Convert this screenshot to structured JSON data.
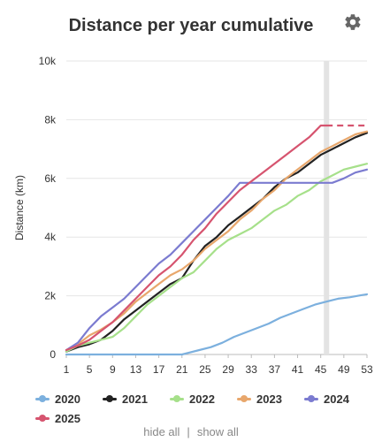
{
  "header": {
    "title": "Distance per year cumulative",
    "settings_icon": "gear-icon"
  },
  "footer": {
    "hide_all": "hide all",
    "separator": "|",
    "show_all": "show all"
  },
  "colors": {
    "2020": "#7cb0de",
    "2021": "#222222",
    "2022": "#a6e08a",
    "2023": "#e8a76c",
    "2024": "#7b7bd0",
    "2025": "#d6546f",
    "highlight": "#e3e3e3"
  },
  "chart_data": {
    "type": "line",
    "title": "Distance per year cumulative",
    "xlabel": "",
    "ylabel": "Distance (km)",
    "xlim": [
      1,
      53
    ],
    "ylim": [
      0,
      10000
    ],
    "x_ticks": [
      1,
      5,
      9,
      13,
      17,
      21,
      25,
      29,
      33,
      37,
      41,
      45,
      49,
      53
    ],
    "y_ticks": [
      0,
      2000,
      4000,
      6000,
      8000,
      10000
    ],
    "y_tick_labels": [
      "0",
      "2k",
      "4k",
      "6k",
      "8k",
      "10k"
    ],
    "highlight_week": 46,
    "grid": true,
    "legend_position": "bottom",
    "series": [
      {
        "name": "2020",
        "x": [
          1,
          3,
          5,
          9,
          13,
          17,
          21,
          22,
          24,
          26,
          28,
          30,
          32,
          34,
          36,
          38,
          40,
          42,
          44,
          46,
          48,
          50,
          52,
          53
        ],
        "values": [
          0,
          0,
          0,
          0,
          0,
          0,
          0,
          50,
          150,
          250,
          400,
          600,
          750,
          900,
          1050,
          1250,
          1400,
          1550,
          1700,
          1800,
          1900,
          1950,
          2020,
          2050
        ]
      },
      {
        "name": "2021",
        "x": [
          1,
          3,
          5,
          7,
          9,
          11,
          13,
          15,
          17,
          19,
          21,
          23,
          25,
          27,
          29,
          31,
          33,
          35,
          37,
          39,
          41,
          43,
          45,
          47,
          49,
          51,
          53
        ],
        "values": [
          100,
          250,
          350,
          500,
          800,
          1200,
          1500,
          1800,
          2100,
          2400,
          2600,
          3200,
          3700,
          4000,
          4400,
          4700,
          5000,
          5300,
          5700,
          6000,
          6200,
          6500,
          6800,
          7000,
          7200,
          7400,
          7550
        ]
      },
      {
        "name": "2022",
        "x": [
          1,
          3,
          5,
          7,
          9,
          11,
          13,
          15,
          17,
          19,
          21,
          23,
          25,
          27,
          29,
          31,
          33,
          35,
          37,
          39,
          41,
          43,
          45,
          47,
          49,
          51,
          53
        ],
        "values": [
          100,
          300,
          400,
          500,
          600,
          900,
          1300,
          1700,
          2000,
          2300,
          2600,
          2800,
          3200,
          3600,
          3900,
          4100,
          4300,
          4600,
          4900,
          5100,
          5400,
          5600,
          5900,
          6100,
          6300,
          6400,
          6500
        ]
      },
      {
        "name": "2023",
        "x": [
          1,
          3,
          5,
          7,
          9,
          11,
          13,
          15,
          17,
          19,
          21,
          23,
          25,
          27,
          29,
          31,
          33,
          35,
          37,
          39,
          41,
          43,
          45,
          47,
          49,
          51,
          53
        ],
        "values": [
          150,
          350,
          650,
          850,
          1100,
          1400,
          1800,
          2100,
          2400,
          2700,
          2900,
          3200,
          3600,
          3900,
          4200,
          4600,
          4900,
          5300,
          5600,
          6000,
          6300,
          6600,
          6900,
          7100,
          7300,
          7500,
          7600
        ]
      },
      {
        "name": "2024",
        "x": [
          1,
          3,
          5,
          7,
          9,
          11,
          13,
          15,
          17,
          19,
          21,
          23,
          25,
          27,
          29,
          31,
          33,
          35,
          37,
          39,
          41,
          43,
          45,
          47,
          49,
          51,
          53
        ],
        "values": [
          150,
          400,
          900,
          1300,
          1600,
          1900,
          2300,
          2700,
          3100,
          3400,
          3800,
          4200,
          4600,
          5000,
          5400,
          5850,
          5850,
          5850,
          5850,
          5850,
          5850,
          5850,
          5850,
          5850,
          6000,
          6200,
          6300
        ]
      },
      {
        "name": "2025",
        "x": [
          1,
          3,
          5,
          7,
          9,
          11,
          13,
          15,
          17,
          19,
          21,
          23,
          25,
          27,
          29,
          31,
          33,
          35,
          37,
          39,
          41,
          43,
          44,
          45,
          46
        ],
        "values": [
          150,
          300,
          500,
          800,
          1100,
          1500,
          1900,
          2300,
          2700,
          3000,
          3400,
          3900,
          4300,
          4800,
          5200,
          5600,
          5900,
          6200,
          6500,
          6800,
          7100,
          7400,
          7600,
          7800,
          7800
        ]
      }
    ],
    "projection": {
      "series": "2025",
      "x": [
        46,
        53
      ],
      "values": [
        7800,
        7800
      ]
    }
  },
  "legend": [
    {
      "label": "2020",
      "key": "2020"
    },
    {
      "label": "2021",
      "key": "2021"
    },
    {
      "label": "2022",
      "key": "2022"
    },
    {
      "label": "2023",
      "key": "2023"
    },
    {
      "label": "2024",
      "key": "2024"
    },
    {
      "label": "2025",
      "key": "2025"
    }
  ]
}
